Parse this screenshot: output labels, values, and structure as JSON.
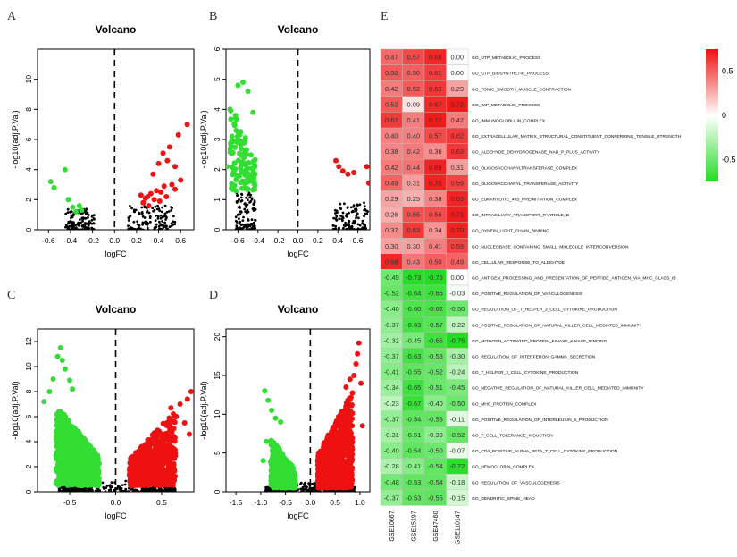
{
  "chart_data": [
    {
      "id": "A",
      "type": "scatter",
      "title": "Volcano",
      "xlabel": "logFC",
      "ylabel": "-log10(adj.P.Val)",
      "xlim": [
        -0.7,
        0.72
      ],
      "ylim": [
        0,
        12
      ],
      "xticks": [
        -0.6,
        -0.4,
        -0.2,
        0.0,
        0.2,
        0.4,
        0.6
      ],
      "xtick_labels": [
        "-0.6",
        "-0.4",
        "-0.2",
        "0.0",
        "0.2",
        "0.4",
        "0.6"
      ],
      "yticks": [
        0,
        2,
        4,
        6,
        8,
        10
      ],
      "ytick_labels": [
        "0",
        "2",
        "4",
        "6",
        "8",
        "10"
      ],
      "series": [
        {
          "name": "down",
          "color": "#33dd33",
          "points": [
            [
              -0.58,
              3.2
            ],
            [
              -0.55,
              2.8
            ],
            [
              -0.45,
              4.0
            ],
            [
              -0.42,
              2.0
            ],
            [
              -0.38,
              1.5
            ],
            [
              -0.35,
              1.2
            ],
            [
              -0.32,
              1.6
            ],
            [
              -0.3,
              1.3
            ]
          ]
        },
        {
          "name": "up",
          "color": "#ee1111",
          "points": [
            [
              0.66,
              7.0
            ],
            [
              0.58,
              6.3
            ],
            [
              0.5,
              5.5
            ],
            [
              0.44,
              5.1
            ],
            [
              0.48,
              4.6
            ],
            [
              0.4,
              4.4
            ],
            [
              0.55,
              4.2
            ],
            [
              0.35,
              3.7
            ],
            [
              0.52,
              3.0
            ],
            [
              0.45,
              2.9
            ],
            [
              0.42,
              2.5
            ],
            [
              0.38,
              2.6
            ],
            [
              0.33,
              2.4
            ],
            [
              0.3,
              2.2
            ],
            [
              0.28,
              2.1
            ],
            [
              0.24,
              2.3
            ],
            [
              0.36,
              2.0
            ],
            [
              0.41,
              1.9
            ],
            [
              0.47,
              2.2
            ],
            [
              0.55,
              2.7
            ],
            [
              0.6,
              3.3
            ],
            [
              0.26,
              1.8
            ],
            [
              0.31,
              1.6
            ]
          ]
        },
        {
          "name": "ns",
          "color": "#000000",
          "dense": 240,
          "regions": [
            [
              -0.45,
              -0.18,
              0,
              1.4
            ],
            [
              0.12,
              0.55,
              0,
              1.6
            ]
          ]
        }
      ],
      "vline": 0
    },
    {
      "id": "B",
      "type": "scatter",
      "title": "Volcano",
      "xlabel": "logFC",
      "ylabel": "-log10(adj.P.Val)",
      "xlim": [
        -0.72,
        0.72
      ],
      "ylim": [
        0,
        6
      ],
      "xticks": [
        -0.6,
        -0.4,
        -0.2,
        0.0,
        0.2,
        0.4,
        0.6
      ],
      "xtick_labels": [
        "-0.6",
        "-0.4",
        "-0.2",
        "0.0",
        "0.2",
        "0.4",
        "0.6"
      ],
      "yticks": [
        0,
        1,
        2,
        3,
        4,
        5,
        6
      ],
      "ytick_labels": [
        "0",
        "1",
        "2",
        "3",
        "4",
        "5",
        "6"
      ],
      "series": [
        {
          "name": "down",
          "color": "#33dd33",
          "dense": 110,
          "regions": [
            [
              -0.68,
              -0.42,
              1.3,
              4.3
            ]
          ],
          "points": [
            [
              -0.55,
              4.9
            ],
            [
              -0.6,
              4.8
            ],
            [
              -0.68,
              4.0
            ],
            [
              -0.71,
              2.1
            ],
            [
              -0.66,
              3.1
            ],
            [
              -0.45,
              3.9
            ],
            [
              -0.5,
              4.6
            ]
          ]
        },
        {
          "name": "up",
          "color": "#ee1111",
          "points": [
            [
              0.38,
              2.3
            ],
            [
              0.41,
              2.1
            ],
            [
              0.5,
              1.85
            ],
            [
              0.56,
              1.9
            ],
            [
              0.69,
              2.1
            ],
            [
              0.71,
              1.55
            ],
            [
              0.45,
              1.95
            ]
          ]
        },
        {
          "name": "ns",
          "color": "#000000",
          "dense": 230,
          "regions": [
            [
              -0.62,
              -0.42,
              0,
              1.4
            ],
            [
              0.35,
              0.7,
              0,
              0.9
            ]
          ]
        }
      ],
      "vline": 0
    },
    {
      "id": "C",
      "type": "scatter",
      "title": "Volcano",
      "xlabel": "logFC",
      "ylabel": "-log10(adj.P.Val)",
      "xlim": [
        -0.85,
        0.85
      ],
      "ylim": [
        0,
        13
      ],
      "xticks": [
        -0.5,
        0.0,
        0.5
      ],
      "xtick_labels": [
        "-0.5",
        "0.0",
        "0.5"
      ],
      "yticks": [
        0,
        2,
        4,
        6,
        8,
        10,
        12
      ],
      "ytick_labels": [
        "0",
        "2",
        "4",
        "6",
        "8",
        "10",
        "12"
      ],
      "series": [
        {
          "name": "down",
          "color": "#33dd33",
          "dense": 900,
          "regions": [
            [
              -0.65,
              -0.18,
              0.5,
              7.0
            ]
          ],
          "points": [
            [
              -0.6,
              11.5
            ],
            [
              -0.63,
              10.8
            ],
            [
              -0.58,
              10.5
            ],
            [
              -0.55,
              9.8
            ],
            [
              -0.68,
              9.0
            ],
            [
              -0.72,
              8.0
            ],
            [
              -0.78,
              7.2
            ],
            [
              -0.5,
              8.9
            ],
            [
              -0.47,
              8.2
            ]
          ]
        },
        {
          "name": "up",
          "color": "#ee1111",
          "dense": 650,
          "regions": [
            [
              0.15,
              0.65,
              0.5,
              6.5
            ]
          ],
          "points": [
            [
              0.82,
              8.0
            ],
            [
              0.78,
              7.4
            ],
            [
              0.7,
              7.0
            ],
            [
              0.6,
              6.7
            ],
            [
              0.8,
              4.6
            ],
            [
              0.75,
              5.5
            ],
            [
              0.66,
              6.0
            ]
          ]
        },
        {
          "name": "ns",
          "color": "#000000",
          "dense": 420,
          "regions": [
            [
              -0.42,
              0.42,
              0,
              0.9
            ],
            [
              -0.62,
              -0.3,
              0,
              0.5
            ],
            [
              0.3,
              0.65,
              0,
              0.5
            ]
          ]
        }
      ],
      "vline": 0
    },
    {
      "id": "D",
      "type": "scatter",
      "title": "Volcano",
      "xlabel": "logFC",
      "ylabel": "-log10(adj.P.Val)",
      "xlim": [
        -1.7,
        1.2
      ],
      "ylim": [
        0,
        21
      ],
      "xticks": [
        -1.5,
        -1.0,
        -0.5,
        0.0,
        0.5,
        1.0
      ],
      "xtick_labels": [
        "-1.5",
        "-1.0",
        "-0.5",
        "0.0",
        "0.5",
        "1.0"
      ],
      "yticks": [
        0,
        5,
        10,
        15,
        20
      ],
      "ytick_labels": [
        "0",
        "5",
        "10",
        "15",
        "20"
      ],
      "series": [
        {
          "name": "down",
          "color": "#33dd33",
          "dense": 380,
          "regions": [
            [
              -0.8,
              -0.3,
              0.5,
              7.0
            ]
          ],
          "points": [
            [
              -0.92,
              13.0
            ],
            [
              -0.85,
              11.8
            ],
            [
              -0.78,
              10.5
            ],
            [
              -0.7,
              9.5
            ],
            [
              -0.6,
              9.0
            ],
            [
              -0.95,
              4.0
            ],
            [
              -0.88,
              6.5
            ]
          ]
        },
        {
          "name": "up",
          "color": "#ee1111",
          "dense": 750,
          "regions": [
            [
              0.15,
              0.85,
              0.5,
              13.0
            ]
          ],
          "points": [
            [
              0.98,
              19.2
            ],
            [
              0.95,
              17.8
            ],
            [
              0.92,
              16.5
            ],
            [
              0.88,
              15.0
            ],
            [
              1.02,
              14.0
            ],
            [
              0.8,
              14.5
            ],
            [
              0.72,
              13.5
            ],
            [
              1.05,
              8.5
            ]
          ]
        },
        {
          "name": "ns",
          "color": "#000000",
          "dense": 380,
          "regions": [
            [
              -0.42,
              0.45,
              0,
              1.2
            ],
            [
              -0.9,
              -0.35,
              0,
              0.6
            ],
            [
              0.35,
              0.9,
              0,
              0.6
            ]
          ]
        }
      ],
      "vline": 0
    },
    {
      "id": "E",
      "type": "heatmap",
      "columns": [
        "GSE10667",
        "GSE15197",
        "GSE47460",
        "GSE110147"
      ],
      "rows": [
        "GO_UTP_METABOLIC_PROCESS",
        "GO_GTP_BIOSYNTHETIC_PROCESS",
        "GO_TONIC_SMOOTH_MUSCLE_CONTRACTION",
        "GO_IMP_METABOLIC_PROCESS",
        "GO_IMMUNOGLOBULIN_COMPLEX",
        "GO_EXTRACELLULAR_MATRIX_STRUCTURAL_CONSTITUENT_CONFERRING_TENSILE_STRENGTH",
        "GO_ALDEHYDE_DEHYDROGENASE_NAD_P_PLUS_ACTIVITY",
        "GO_OLIGOSACCHARYLTRANSFERASE_COMPLEX",
        "GO_OLIGOSACCHARYL_TRANSFERASE_ACTIVITY",
        "GO_EUKARYOTIC_48S_PREINITIATION_COMPLEX",
        "GO_INTRACILIARY_TRANSPORT_PARTICLE_B",
        "GO_DYNEIN_LIGHT_CHAIN_BINDING",
        "GO_NUCLEOBASE_CONTAINING_SMALL_MOLECULE_INTERCONVERSION",
        "GO_CELLULAR_RESPONSE_TO_ALDEHYDE",
        "GO_ANTIGEN_PROCESSING_AND_PRESENTATION_OF_PEPTIDE_ANTIGEN_VIA_MHC_CLASS_IB",
        "GO_POSITIVE_REGULATION_OF_VASCULOGENESIS",
        "GO_REGULATION_OF_T_HELPER_2_CELL_CYTOKINE_PRODUCTION",
        "GO_POSITIVE_REGULATION_OF_NATURAL_KILLER_CELL_MEDIATED_IMMUNITY",
        "GO_MITOGEN_ACTIVATED_PROTEIN_KINASE_KINASE_BINDING",
        "GO_REGULATION_OF_INTERFERON_GAMMA_SECRETION",
        "GO_T_HELPER_2_CELL_CYTOKINE_PRODUCTION",
        "GO_NEGATIVE_REGULATION_OF_NATURAL_KILLER_CELL_MEDIATED_IMMUNITY",
        "GO_MHC_PROTEIN_COMPLEX",
        "GO_POSITIVE_REGULATION_OF_INTERLEUKIN_5_PRODUCTION",
        "GO_T_CELL_TOLERANCE_INDUCTION",
        "GO_CD4_POSITIVE_ALPHA_BETA_T_CELL_CYTOKINE_PRODUCTION",
        "GO_HEMOGLOBIN_COMPLEX",
        "GO_REGULATION_OF_VASCULOGENESIS",
        "GO_DENDRITIC_SPINE_HEAD"
      ],
      "values": [
        [
          0.47,
          0.57,
          0.68,
          0.0
        ],
        [
          0.52,
          0.5,
          0.61,
          0.0
        ],
        [
          0.42,
          0.52,
          0.63,
          0.29
        ],
        [
          0.52,
          0.09,
          0.67,
          0.72
        ],
        [
          0.62,
          0.41,
          0.72,
          0.42
        ],
        [
          0.4,
          0.4,
          0.57,
          0.62
        ],
        [
          0.38,
          0.42,
          0.36,
          0.63
        ],
        [
          0.42,
          0.44,
          0.69,
          0.31
        ],
        [
          0.49,
          0.31,
          0.7,
          0.59
        ],
        [
          0.29,
          0.25,
          0.38,
          0.69
        ],
        [
          0.26,
          0.55,
          0.56,
          0.71
        ],
        [
          0.37,
          0.63,
          0.34,
          0.7
        ],
        [
          0.3,
          0.3,
          0.41,
          0.59
        ],
        [
          0.68,
          0.43,
          0.5,
          0.49
        ],
        [
          -0.49,
          -0.73,
          -0.75,
          0.0
        ],
        [
          -0.52,
          -0.64,
          -0.65,
          -0.03
        ],
        [
          -0.4,
          -0.6,
          -0.62,
          -0.5
        ],
        [
          -0.37,
          -0.63,
          -0.57,
          -0.22
        ],
        [
          -0.32,
          -0.45,
          -0.65,
          -0.75
        ],
        [
          -0.37,
          -0.63,
          -0.53,
          -0.3
        ],
        [
          -0.41,
          -0.55,
          -0.52,
          -0.24
        ],
        [
          -0.34,
          -0.65,
          -0.51,
          -0.45
        ],
        [
          -0.23,
          -0.67,
          -0.4,
          -0.5
        ],
        [
          -0.37,
          -0.54,
          -0.53,
          -0.11
        ],
        [
          -0.31,
          -0.51,
          -0.39,
          -0.52
        ],
        [
          -0.4,
          -0.54,
          -0.5,
          -0.07
        ],
        [
          -0.28,
          -0.41,
          -0.54,
          -0.72
        ],
        [
          -0.48,
          -0.53,
          -0.54,
          -0.18
        ],
        [
          -0.37,
          -0.53,
          -0.55,
          -0.15
        ]
      ],
      "value_labels": [
        [
          "0.47",
          "0.57",
          "0.68",
          "0.00"
        ],
        [
          "0.52",
          "0.50",
          "0.61",
          "0.00"
        ],
        [
          "0.42",
          "0.52",
          "0.63",
          "0.29"
        ],
        [
          "0.52",
          "0.09",
          "0.67",
          "0.72"
        ],
        [
          "0.62",
          "0.41",
          "0.72",
          "0.42"
        ],
        [
          "0.40",
          "0.40",
          "0.57",
          "0.62"
        ],
        [
          "0.38",
          "0.42",
          "0.36",
          "0.63"
        ],
        [
          "0.42",
          "0.44",
          "0.69",
          "0.31"
        ],
        [
          "0.49",
          "0.31",
          "0.70",
          "0.59"
        ],
        [
          "0.29",
          "0.25",
          "0.38",
          "0.69"
        ],
        [
          "0.26",
          "0.55",
          "0.56",
          "0.71"
        ],
        [
          "0.37",
          "0.63",
          "0.34",
          "0.70"
        ],
        [
          "0.30",
          "0.30",
          "0.41",
          "0.59"
        ],
        [
          "0.68",
          "0.43",
          "0.50",
          "0.49"
        ],
        [
          "-0.49",
          "-0.73",
          "-0.75",
          "0.00"
        ],
        [
          "-0.52",
          "-0.64",
          "-0.65",
          "-0.03"
        ],
        [
          "-0.40",
          "-0.60",
          "-0.62",
          "-0.50"
        ],
        [
          "-0.37",
          "-0.63",
          "-0.57",
          "-0.22"
        ],
        [
          "-0.32",
          "-0.45",
          "-0.65",
          "-0.75"
        ],
        [
          "-0.37",
          "-0.63",
          "-0.53",
          "-0.30"
        ],
        [
          "-0.41",
          "-0.55",
          "-0.52",
          "-0.24"
        ],
        [
          "-0.34",
          "-0.65",
          "-0.51",
          "-0.45"
        ],
        [
          "-0.23",
          "-0.67",
          "-0.40",
          "-0.50"
        ],
        [
          "-0.37",
          "-0.54",
          "-0.53",
          "-0.11"
        ],
        [
          "-0.31",
          "-0.51",
          "-0.39",
          "-0.52"
        ],
        [
          "-0.40",
          "-0.54",
          "-0.50",
          "-0.07"
        ],
        [
          "-0.28",
          "-0.41",
          "-0.54",
          "-0.72"
        ],
        [
          "-0.48",
          "-0.53",
          "-0.54",
          "-0.18"
        ],
        [
          "-0.37",
          "-0.53",
          "-0.55",
          "-0.15"
        ]
      ],
      "colorbar": {
        "range": [
          -0.75,
          0.75
        ],
        "ticks": [
          0.5,
          0,
          -0.5
        ],
        "tick_labels": [
          "0.5",
          "0",
          "-0.5"
        ],
        "high_color": "#ee1111",
        "mid_color": "#ffffff",
        "low_color": "#22dd22"
      }
    }
  ]
}
